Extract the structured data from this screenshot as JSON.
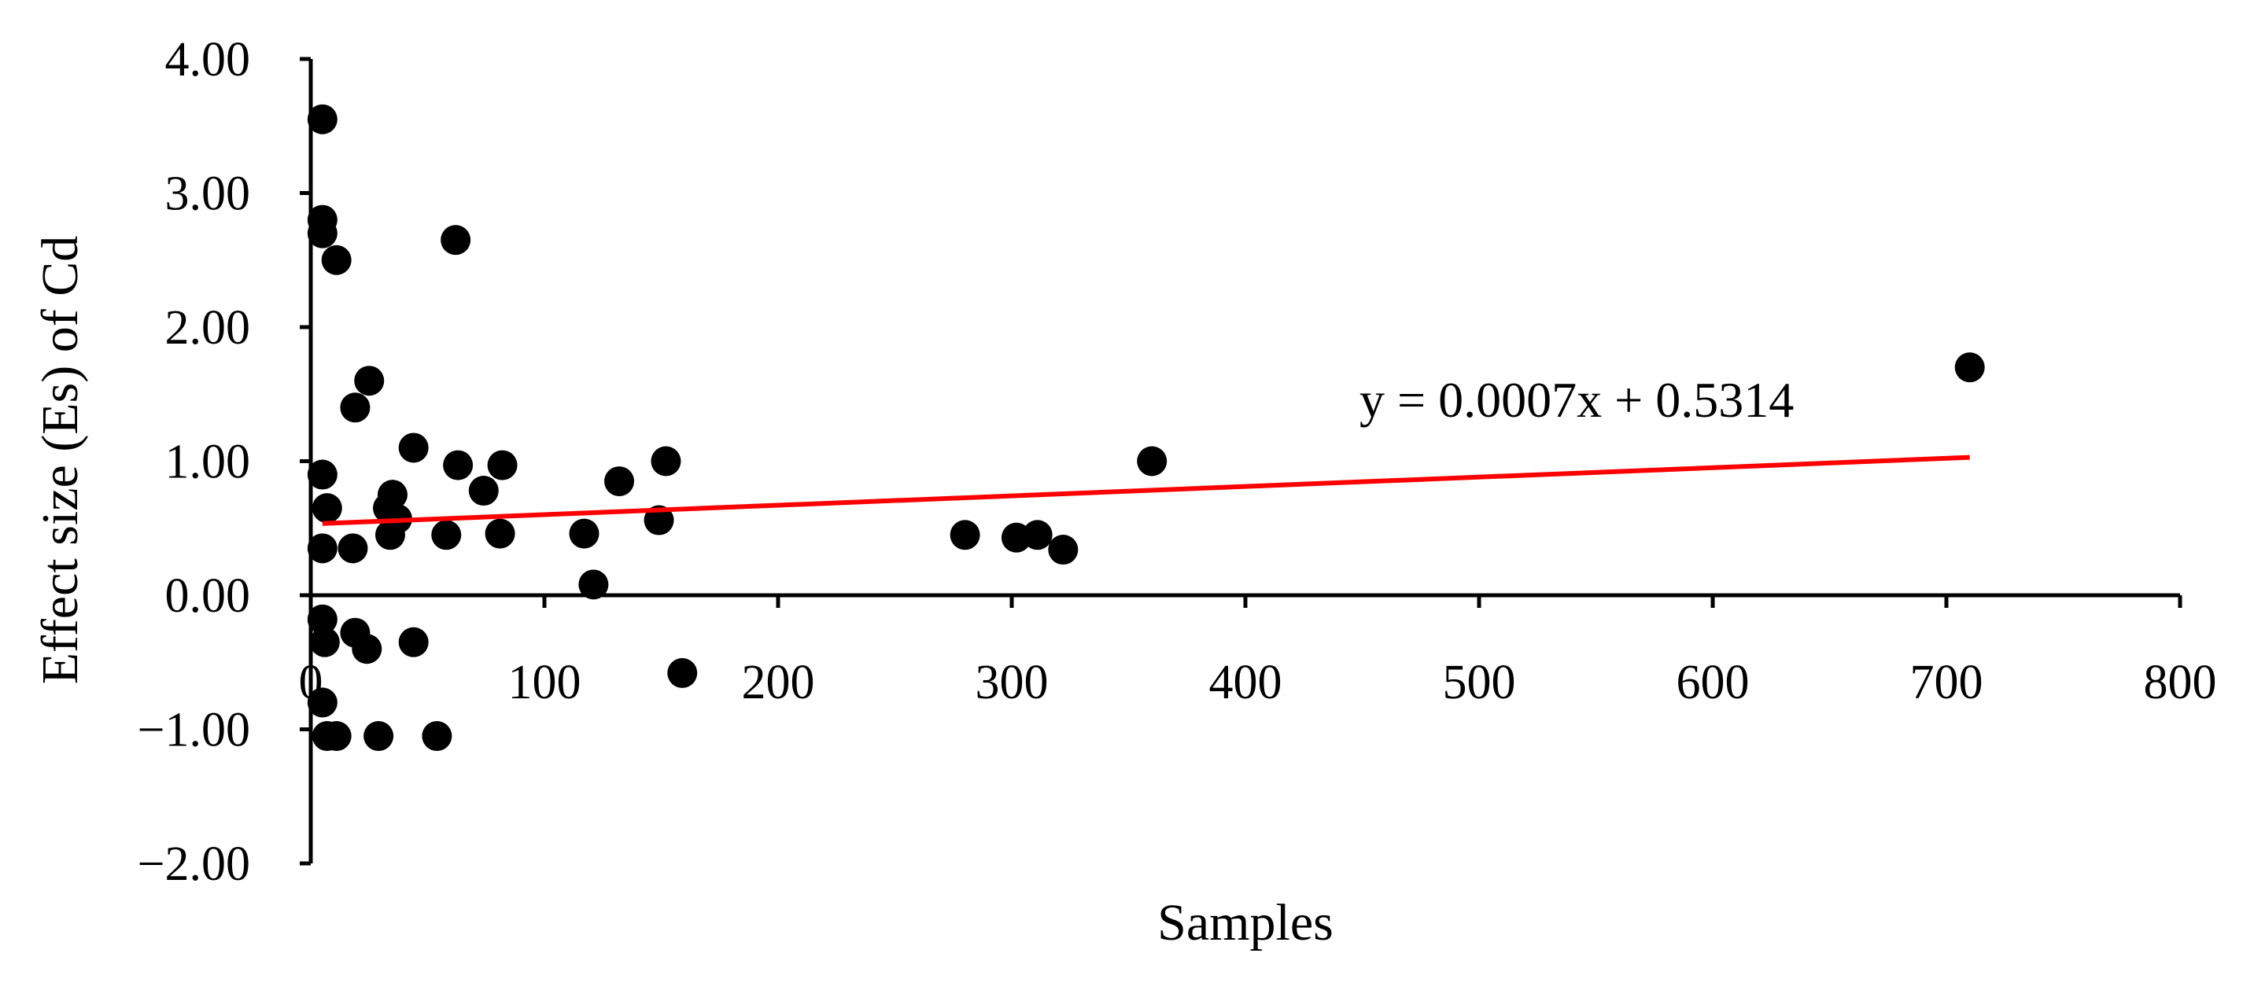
{
  "chart_data": {
    "type": "scatter",
    "title": "",
    "xlabel": "Samples",
    "ylabel": "Effect size (Es) of Cd",
    "xlim": [
      0,
      800
    ],
    "ylim": [
      -2,
      4
    ],
    "x_ticks": [
      0,
      100,
      200,
      300,
      400,
      500,
      600,
      700,
      800
    ],
    "x_tick_labels": [
      "0",
      "100",
      "200",
      "300",
      "400",
      "500",
      "600",
      "700",
      "800"
    ],
    "y_ticks": [
      4,
      3,
      2,
      1,
      0,
      -1,
      -2
    ],
    "y_tick_labels": [
      "4.00",
      "3.00",
      "2.00",
      "1.00",
      "0.00",
      "−1.00",
      "−2.00"
    ],
    "grid": false,
    "marker_color": "#000000",
    "trendline_color": "#ff0000",
    "points": [
      {
        "x": 5,
        "y": 3.55
      },
      {
        "x": 5,
        "y": 2.8
      },
      {
        "x": 5,
        "y": 2.7
      },
      {
        "x": 11,
        "y": 2.5
      },
      {
        "x": 62,
        "y": 2.65
      },
      {
        "x": 25,
        "y": 1.6
      },
      {
        "x": 19,
        "y": 1.4
      },
      {
        "x": 44,
        "y": 1.1
      },
      {
        "x": 5,
        "y": 0.9
      },
      {
        "x": 63,
        "y": 0.97
      },
      {
        "x": 82,
        "y": 0.97
      },
      {
        "x": 7,
        "y": 0.65
      },
      {
        "x": 5,
        "y": 0.35
      },
      {
        "x": 18,
        "y": 0.35
      },
      {
        "x": 33,
        "y": 0.65
      },
      {
        "x": 35,
        "y": 0.75
      },
      {
        "x": 37,
        "y": 0.57
      },
      {
        "x": 34,
        "y": 0.45
      },
      {
        "x": 58,
        "y": 0.45
      },
      {
        "x": 74,
        "y": 0.78
      },
      {
        "x": 81,
        "y": 0.46
      },
      {
        "x": 117,
        "y": 0.46
      },
      {
        "x": 121,
        "y": 0.08
      },
      {
        "x": 132,
        "y": 0.85
      },
      {
        "x": 149,
        "y": 0.56
      },
      {
        "x": 152,
        "y": 1.0
      },
      {
        "x": 159,
        "y": -0.58
      },
      {
        "x": 280,
        "y": 0.45
      },
      {
        "x": 302,
        "y": 0.43
      },
      {
        "x": 311,
        "y": 0.45
      },
      {
        "x": 322,
        "y": 0.34
      },
      {
        "x": 360,
        "y": 1.0
      },
      {
        "x": 710,
        "y": 1.7
      },
      {
        "x": 5,
        "y": -0.18
      },
      {
        "x": 6,
        "y": -0.35
      },
      {
        "x": 19,
        "y": -0.28
      },
      {
        "x": 24,
        "y": -0.4
      },
      {
        "x": 44,
        "y": -0.35
      },
      {
        "x": 5,
        "y": -0.8
      },
      {
        "x": 7,
        "y": -1.05
      },
      {
        "x": 11,
        "y": -1.05
      },
      {
        "x": 29,
        "y": -1.05
      },
      {
        "x": 54,
        "y": -1.05
      }
    ],
    "trendline": {
      "slope": 0.0007,
      "intercept": 0.5314,
      "x_range": [
        5,
        710
      ]
    },
    "equation_label": "y = 0.0007x + 0.5314"
  }
}
